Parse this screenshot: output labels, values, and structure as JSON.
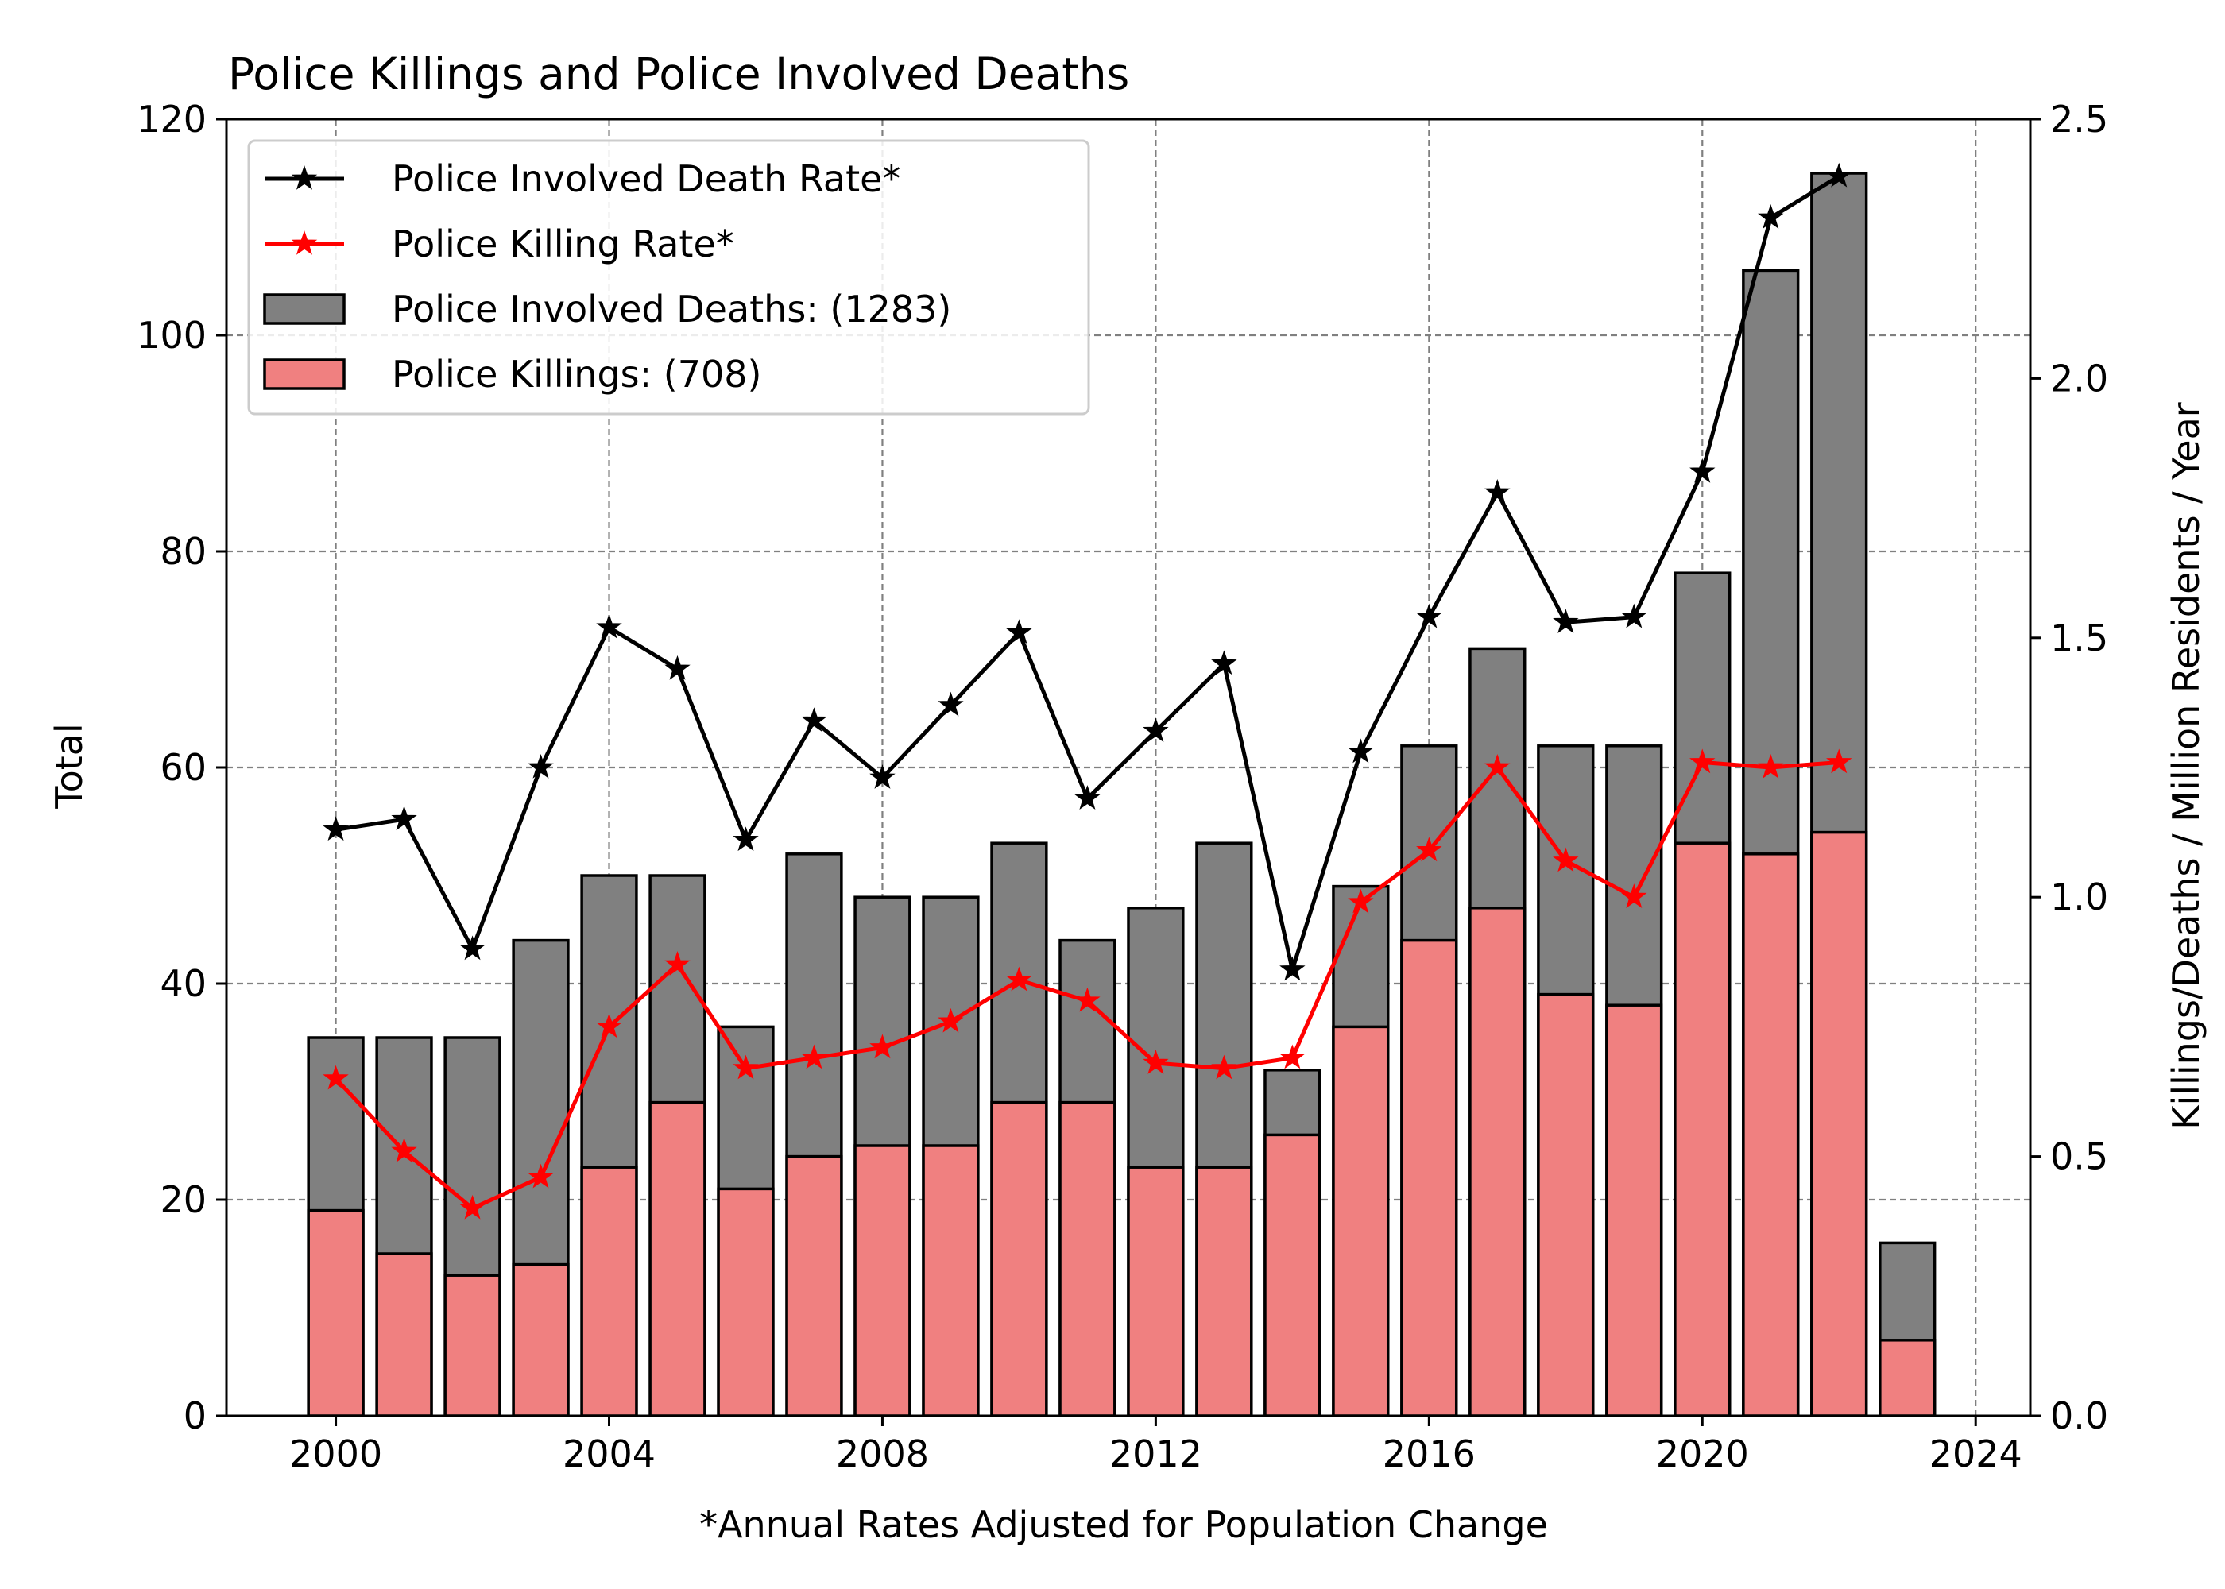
{
  "chart_data": {
    "type": "bar",
    "title": "Police Killings and Police Involved Deaths",
    "xlabel": "*Annual Rates Adjusted for Population Change",
    "ylabel": "Total",
    "y2label": "Killings/Deaths / Million Residents / Year",
    "xlim": [
      1998.4,
      2024.8
    ],
    "ylim": [
      0,
      120
    ],
    "y2lim": [
      0,
      2.5
    ],
    "grid": true,
    "legend_position": "top-left",
    "x_ticks": [
      2000,
      2004,
      2008,
      2012,
      2016,
      2020,
      2024
    ],
    "y_ticks": [
      0,
      20,
      40,
      60,
      80,
      100,
      120
    ],
    "y2_ticks": [
      "0.0",
      "0.5",
      "1.0",
      "1.5",
      "2.0",
      "2.5"
    ],
    "x": [
      2000,
      2001,
      2002,
      2003,
      2004,
      2005,
      2006,
      2007,
      2008,
      2009,
      2010,
      2011,
      2012,
      2013,
      2014,
      2015,
      2016,
      2017,
      2018,
      2019,
      2020,
      2021,
      2022,
      2023
    ],
    "series": [
      {
        "name": "Police Involved Deaths: (1283)",
        "kind": "bar",
        "axis": "left",
        "color": "#808080",
        "values": [
          35,
          35,
          35,
          44,
          50,
          50,
          36,
          52,
          48,
          48,
          53,
          44,
          47,
          53,
          32,
          49,
          62,
          71,
          62,
          62,
          78,
          106,
          115,
          16
        ]
      },
      {
        "name": "Police Killings: (708)",
        "kind": "bar",
        "axis": "left",
        "color": "#f08080",
        "values": [
          19,
          15,
          13,
          14,
          23,
          29,
          21,
          24,
          25,
          25,
          29,
          29,
          23,
          23,
          26,
          36,
          44,
          47,
          39,
          38,
          53,
          52,
          54,
          7
        ]
      },
      {
        "name": "Police Involved Death Rate*",
        "kind": "line",
        "axis": "right",
        "color": "#000000",
        "x": [
          2000,
          2001,
          2002,
          2003,
          2004,
          2005,
          2006,
          2007,
          2008,
          2009,
          2010,
          2011,
          2012,
          2013,
          2014,
          2015,
          2016,
          2017,
          2018,
          2019,
          2020,
          2021,
          2022
        ],
        "values": [
          1.13,
          1.15,
          0.9,
          1.25,
          1.52,
          1.44,
          1.11,
          1.34,
          1.23,
          1.37,
          1.51,
          1.19,
          1.32,
          1.45,
          0.86,
          1.28,
          1.54,
          1.78,
          1.53,
          1.54,
          1.82,
          2.31,
          2.39
        ]
      },
      {
        "name": "Police Killing Rate*",
        "kind": "line",
        "axis": "right",
        "color": "#ff0000",
        "x": [
          2000,
          2001,
          2002,
          2003,
          2004,
          2005,
          2006,
          2007,
          2008,
          2009,
          2010,
          2011,
          2012,
          2013,
          2014,
          2015,
          2016,
          2017,
          2018,
          2019,
          2020,
          2021,
          2022
        ],
        "values": [
          0.65,
          0.51,
          0.4,
          0.46,
          0.75,
          0.87,
          0.67,
          0.69,
          0.71,
          0.76,
          0.84,
          0.8,
          0.68,
          0.67,
          0.69,
          0.99,
          1.09,
          1.25,
          1.07,
          1.0,
          1.26,
          1.25,
          1.26
        ]
      }
    ],
    "legend": [
      "Police Involved Death Rate*",
      "Police Killing Rate*",
      "Police Involved Deaths: (1283)",
      "Police Killings: (708)"
    ]
  }
}
